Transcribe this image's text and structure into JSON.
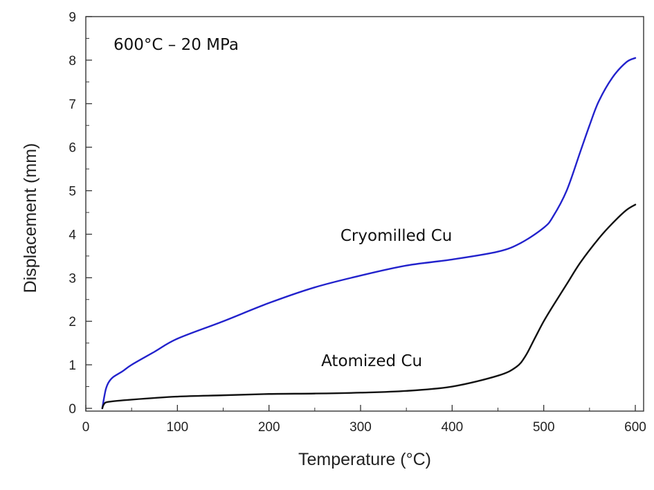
{
  "chart_data": {
    "type": "line",
    "title": "",
    "annotation": "600°C – 20 MPa",
    "xlabel": "Temperature (°C)",
    "ylabel": "Displacement (mm)",
    "xlim": [
      0,
      600
    ],
    "ylim": [
      0,
      9
    ],
    "xticks": [
      0,
      100,
      200,
      300,
      400,
      500,
      600
    ],
    "yticks": [
      0,
      1,
      2,
      3,
      4,
      5,
      6,
      7,
      8,
      9
    ],
    "grid": false,
    "legend": "none (series labelled directly on plot)",
    "series": [
      {
        "name": "Cryomilled Cu",
        "color": "#2222cc",
        "x": [
          18,
          20,
          22,
          25,
          30,
          40,
          50,
          75,
          100,
          150,
          200,
          250,
          300,
          350,
          400,
          450,
          475,
          500,
          510,
          525,
          540,
          550,
          560,
          575,
          590,
          600
        ],
        "y": [
          0.0,
          0.25,
          0.45,
          0.6,
          0.72,
          0.85,
          1.0,
          1.3,
          1.6,
          2.0,
          2.42,
          2.78,
          3.05,
          3.28,
          3.42,
          3.6,
          3.8,
          4.15,
          4.4,
          5.0,
          5.9,
          6.5,
          7.05,
          7.6,
          7.95,
          8.05
        ]
      },
      {
        "name": "Atomized Cu",
        "color": "#111111",
        "x": [
          18,
          20,
          25,
          50,
          100,
          150,
          200,
          250,
          300,
          350,
          400,
          450,
          470,
          480,
          490,
          500,
          510,
          525,
          540,
          560,
          575,
          590,
          600
        ],
        "y": [
          0.0,
          0.1,
          0.15,
          0.2,
          0.27,
          0.3,
          0.33,
          0.34,
          0.36,
          0.4,
          0.5,
          0.75,
          0.95,
          1.2,
          1.6,
          2.0,
          2.35,
          2.85,
          3.35,
          3.9,
          4.25,
          4.55,
          4.68
        ]
      }
    ]
  }
}
